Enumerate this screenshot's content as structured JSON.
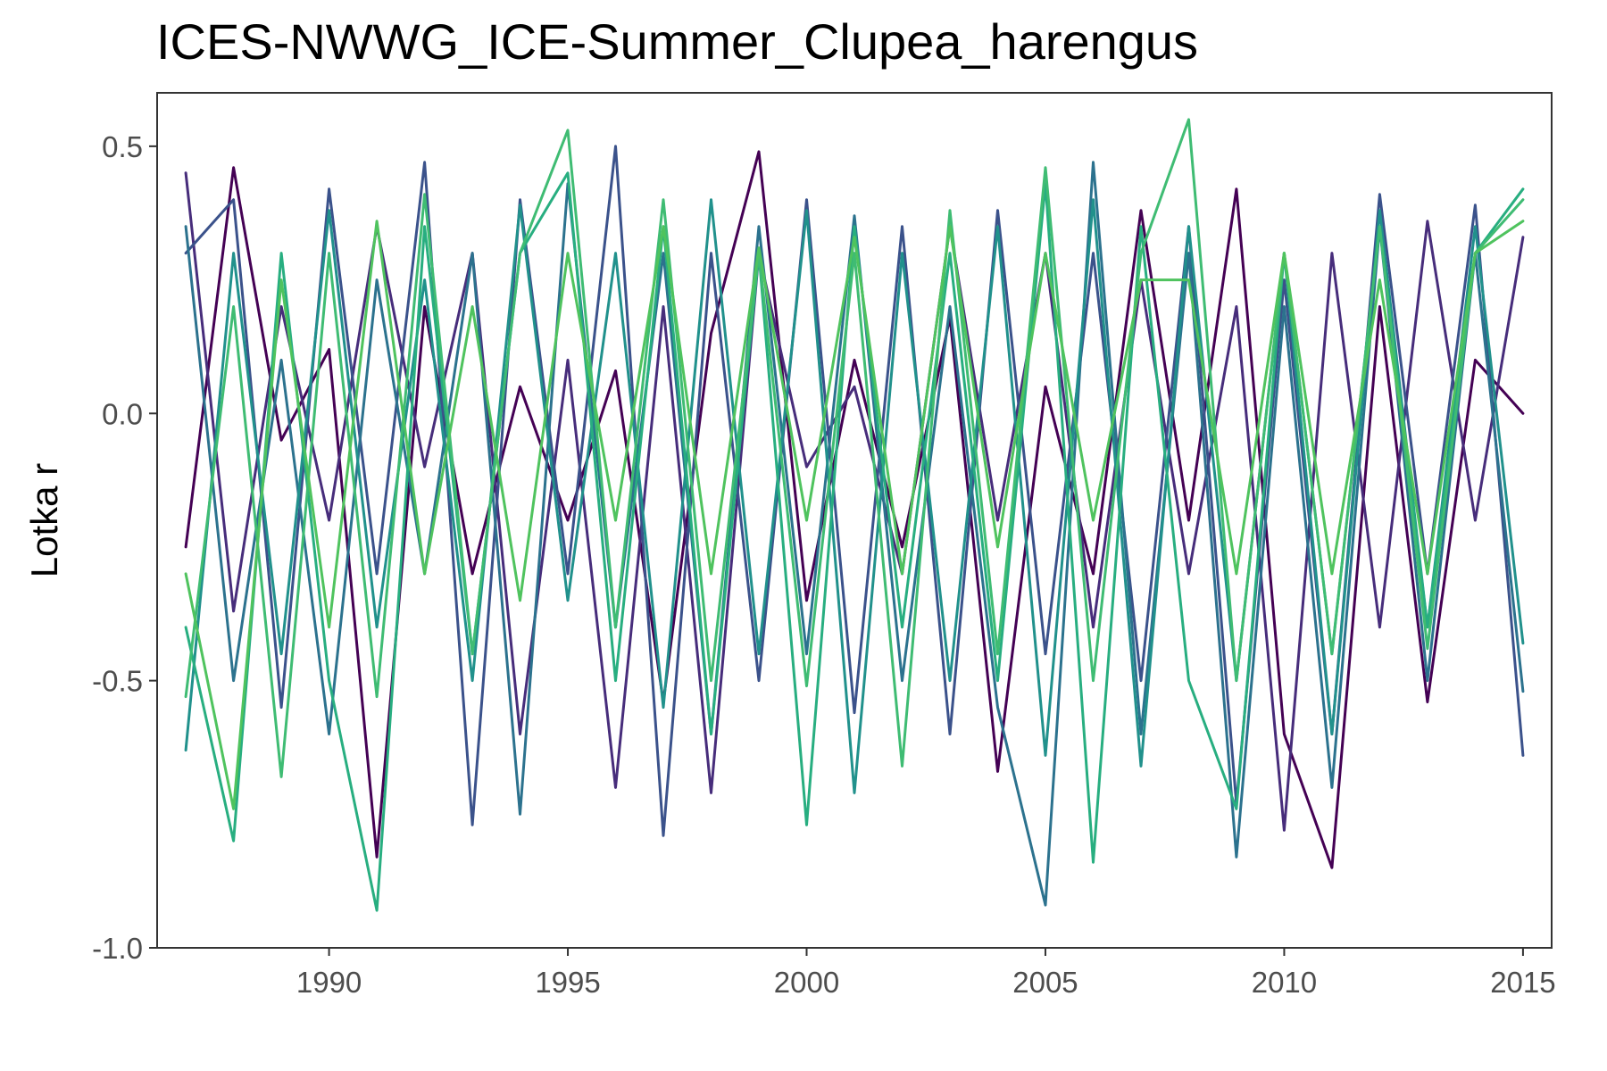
{
  "chart_data": {
    "type": "line",
    "title": "ICES-NWWG_ICE-Summer_Clupea_harengus",
    "xlabel": "",
    "ylabel": "Lotka r",
    "x": [
      1987,
      1988,
      1989,
      1990,
      1991,
      1992,
      1993,
      1994,
      1995,
      1996,
      1997,
      1998,
      1999,
      2000,
      2001,
      2002,
      2003,
      2004,
      2005,
      2006,
      2007,
      2008,
      2009,
      2010,
      2011,
      2012,
      2013,
      2014,
      2015
    ],
    "xlim": [
      1986.4,
      2015.6
    ],
    "ylim": [
      -1.0,
      0.6
    ],
    "x_ticks": [
      1990,
      1995,
      2000,
      2005,
      2010,
      2015
    ],
    "x_tick_labels": [
      "1990",
      "1995",
      "2000",
      "2005",
      "2010",
      "2015"
    ],
    "y_ticks": [
      0.5,
      0.0,
      -0.5,
      -1.0
    ],
    "y_tick_labels": [
      "0.5",
      "0.0",
      "-0.5",
      "-1.0"
    ],
    "legend": "none",
    "grid": false,
    "colormap": [
      "#440154",
      "#472d7b",
      "#3b528b",
      "#2c728e",
      "#21918c",
      "#28ae80",
      "#3fbc73",
      "#4fc35e"
    ],
    "series": [
      {
        "color": "#440154",
        "values": [
          -0.25,
          0.46,
          -0.05,
          0.12,
          -0.83,
          0.2,
          -0.3,
          0.05,
          -0.2,
          0.08,
          -0.54,
          0.15,
          0.49,
          -0.35,
          0.1,
          -0.25,
          0.18,
          -0.67,
          0.05,
          -0.3,
          0.38,
          -0.2,
          0.42,
          -0.6,
          -0.85,
          0.2,
          -0.54,
          0.1,
          0.0
        ]
      },
      {
        "color": "#472d7b",
        "values": [
          0.45,
          -0.37,
          0.2,
          -0.2,
          0.35,
          -0.1,
          0.3,
          -0.6,
          0.1,
          -0.7,
          0.2,
          -0.71,
          0.3,
          -0.1,
          0.05,
          -0.3,
          0.35,
          -0.2,
          0.3,
          -0.4,
          0.25,
          -0.3,
          0.2,
          -0.78,
          0.3,
          -0.4,
          0.36,
          -0.2,
          0.33
        ]
      },
      {
        "color": "#3b528b",
        "values": [
          0.3,
          0.4,
          -0.55,
          0.42,
          -0.3,
          0.47,
          -0.77,
          0.4,
          -0.3,
          0.5,
          -0.79,
          0.3,
          -0.5,
          0.4,
          -0.56,
          0.35,
          -0.6,
          0.38,
          -0.45,
          0.3,
          -0.5,
          0.35,
          -0.73,
          0.25,
          -0.6,
          0.41,
          -0.3,
          0.39,
          -0.64
        ]
      },
      {
        "color": "#2c728e",
        "values": [
          0.35,
          -0.5,
          0.1,
          -0.6,
          0.25,
          -0.3,
          0.3,
          -0.75,
          0.43,
          -0.4,
          0.3,
          -0.6,
          0.35,
          -0.45,
          0.37,
          -0.5,
          0.2,
          -0.55,
          -0.92,
          0.47,
          -0.6,
          0.3,
          -0.83,
          0.2,
          -0.7,
          0.35,
          -0.5,
          0.3,
          -0.52
        ]
      },
      {
        "color": "#21918c",
        "values": [
          -0.63,
          0.3,
          -0.45,
          0.38,
          -0.4,
          0.25,
          -0.5,
          0.39,
          -0.35,
          0.3,
          -0.55,
          0.4,
          -0.45,
          0.38,
          -0.71,
          0.3,
          -0.5,
          0.35,
          -0.64,
          0.4,
          -0.66,
          0.35,
          -0.5,
          0.3,
          -0.6,
          0.38,
          -0.4,
          0.35,
          -0.43
        ]
      },
      {
        "color": "#28ae80",
        "values": [
          -0.4,
          -0.8,
          0.3,
          -0.5,
          -0.93,
          0.35,
          -0.45,
          0.3,
          0.45,
          -0.5,
          0.35,
          -0.6,
          0.3,
          -0.77,
          0.35,
          -0.4,
          0.3,
          -0.5,
          0.43,
          -0.84,
          0.35,
          -0.5,
          -0.74,
          0.3,
          -0.45,
          0.35,
          -0.4,
          0.3,
          0.42
        ]
      },
      {
        "color": "#3fbc73",
        "values": [
          -0.53,
          0.2,
          -0.68,
          0.3,
          -0.53,
          0.41,
          -0.45,
          0.3,
          0.53,
          -0.4,
          0.4,
          -0.5,
          0.3,
          -0.51,
          0.3,
          -0.66,
          0.38,
          -0.45,
          0.46,
          -0.5,
          0.3,
          0.55,
          -0.5,
          0.3,
          -0.45,
          0.35,
          -0.44,
          0.3,
          0.4
        ]
      },
      {
        "color": "#4fc35e",
        "values": [
          -0.3,
          -0.74,
          0.25,
          -0.4,
          0.36,
          -0.3,
          0.2,
          -0.35,
          0.3,
          -0.2,
          0.35,
          -0.3,
          0.31,
          -0.2,
          0.33,
          -0.3,
          0.35,
          -0.25,
          0.3,
          -0.2,
          0.25,
          0.25,
          -0.3,
          0.3,
          -0.3,
          0.25,
          -0.3,
          0.3,
          0.36
        ]
      }
    ]
  }
}
